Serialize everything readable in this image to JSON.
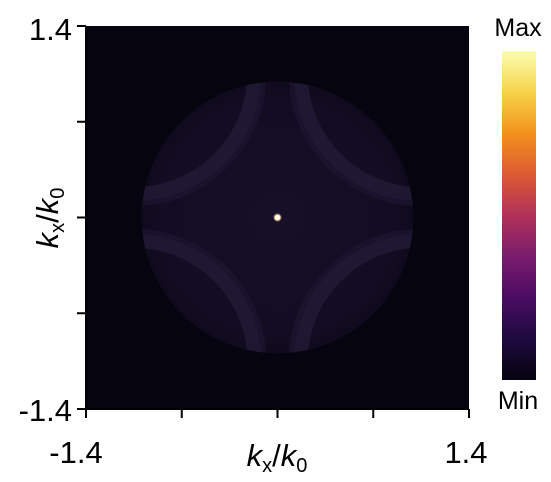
{
  "chart_data": {
    "type": "heatmap",
    "title": "",
    "xlabel": {
      "var": "k",
      "sub": "x",
      "sep": "/",
      "ref": "k",
      "refsub": "0"
    },
    "ylabel": {
      "var": "k",
      "sub": "x",
      "sep": "/",
      "ref": "k",
      "refsub": "0"
    },
    "xlim": [
      -1.4,
      1.4
    ],
    "ylim": [
      -1.4,
      1.4
    ],
    "xtick_labels": [
      "-1.4",
      "1.4"
    ],
    "ytick_labels": [
      "1.4",
      "-1.4"
    ],
    "xticks": [
      -1.4,
      -0.7,
      0,
      0.7,
      1.4
    ],
    "yticks": [
      -1.4,
      -0.7,
      0,
      0.7,
      1.4
    ],
    "colorbar": {
      "max_label": "Max",
      "min_label": "Min",
      "colormap": "inferno-like",
      "stops": [
        "#06030f",
        "#1d0a3e",
        "#4a0c63",
        "#7a1c6d",
        "#b1325a",
        "#dc5a33",
        "#f3921c",
        "#f6d44a",
        "#fcfdb0"
      ]
    },
    "background_color": "#06040f",
    "pupil": {
      "radius": 1.0,
      "fill": "#140e25"
    },
    "hotspot": {
      "x": 0.0,
      "y": 0.0,
      "value": "Max"
    },
    "features": [
      {
        "name": "arc-upper-left",
        "center": [
          -1.05,
          1.05
        ],
        "radius": 0.88
      },
      {
        "name": "arc-upper-right",
        "center": [
          1.05,
          1.05
        ],
        "radius": 0.88
      },
      {
        "name": "arc-lower-left",
        "center": [
          -1.05,
          -1.05
        ],
        "radius": 0.88
      },
      {
        "name": "arc-lower-right",
        "center": [
          1.05,
          -1.05
        ],
        "radius": 0.88
      }
    ]
  }
}
